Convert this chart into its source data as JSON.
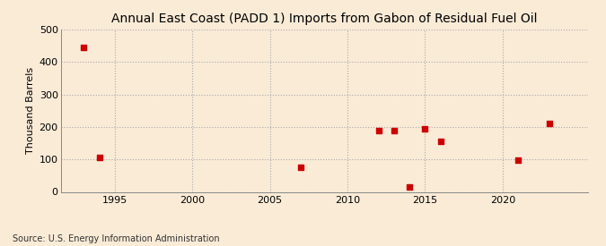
{
  "title": "Annual East Coast (PADD 1) Imports from Gabon of Residual Fuel Oil",
  "ylabel": "Thousand Barrels",
  "source": "Source: U.S. Energy Information Administration",
  "background_color": "#faebd7",
  "scatter_color": "#cc0000",
  "data_x": [
    1993,
    1994,
    2007,
    2012,
    2013,
    2014,
    2015,
    2016,
    2021,
    2023
  ],
  "data_y": [
    445,
    107,
    75,
    190,
    190,
    15,
    195,
    155,
    97,
    210
  ],
  "xlim": [
    1991.5,
    2025.5
  ],
  "ylim": [
    0,
    500
  ],
  "xticks": [
    1995,
    2000,
    2005,
    2010,
    2015,
    2020
  ],
  "yticks": [
    0,
    100,
    200,
    300,
    400,
    500
  ],
  "title_fontsize": 10,
  "label_fontsize": 8,
  "tick_fontsize": 8,
  "source_fontsize": 7,
  "marker_size": 4
}
